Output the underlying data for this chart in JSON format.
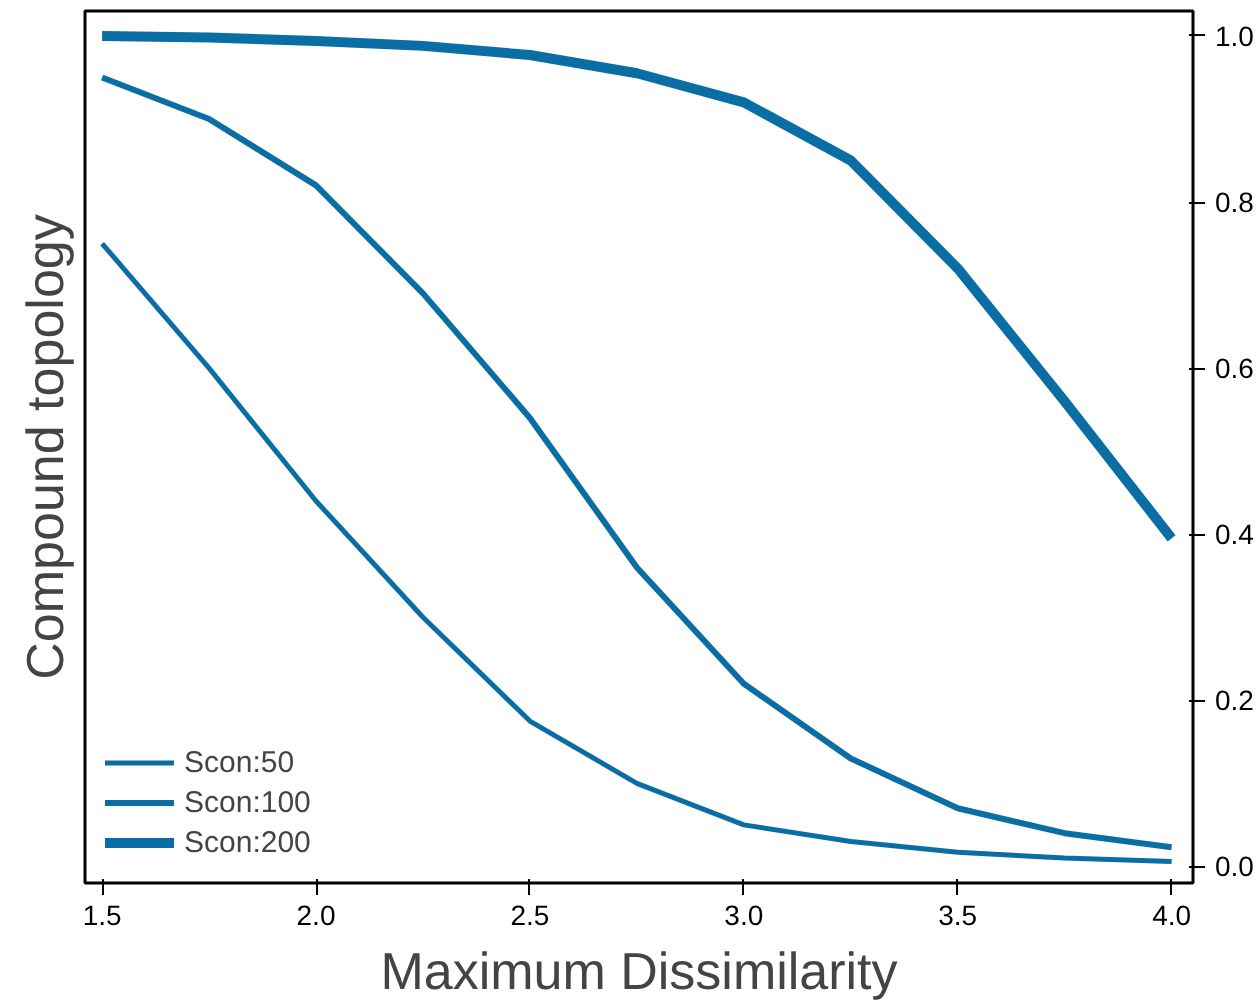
{
  "chart_data": {
    "type": "line",
    "xlabel": "Maximum Dissimilarity",
    "ylabel": "Compound topology",
    "x": [
      1.5,
      1.75,
      2.0,
      2.25,
      2.5,
      2.75,
      3.0,
      3.25,
      3.5,
      3.75,
      4.0
    ],
    "series": [
      {
        "name": "Scon:50",
        "color": "#0a6ea4",
        "values": [
          0.75,
          0.6,
          0.44,
          0.3,
          0.175,
          0.1,
          0.05,
          0.03,
          0.017,
          0.01,
          0.006
        ]
      },
      {
        "name": "Scon:100",
        "color": "#0a6ea4",
        "values": [
          0.95,
          0.9,
          0.82,
          0.69,
          0.54,
          0.36,
          0.22,
          0.13,
          0.07,
          0.04,
          0.023
        ]
      },
      {
        "name": "Scon:200",
        "color": "#0a6ea4",
        "values": [
          1.0,
          0.998,
          0.994,
          0.988,
          0.977,
          0.955,
          0.92,
          0.85,
          0.72,
          0.56,
          0.395
        ]
      }
    ],
    "xlim": [
      1.46,
      4.05
    ],
    "ylim": [
      -0.02,
      1.03
    ],
    "xticks": [
      {
        "value": 1.5,
        "label": "1.5"
      },
      {
        "value": 2.0,
        "label": "2.0"
      },
      {
        "value": 2.5,
        "label": "2.5"
      },
      {
        "value": 3.0,
        "label": "3.0"
      },
      {
        "value": 3.5,
        "label": "3.5"
      },
      {
        "value": 4.0,
        "label": "4.0"
      }
    ],
    "yticks": [
      {
        "value": 0,
        "label": "0.0"
      },
      0.2,
      0.4,
      0.6,
      0.8,
      {
        "value": 1,
        "label": "1.0"
      }
    ],
    "grid": false,
    "legend": "bottom left",
    "marker": "none",
    "line_style": "solid"
  }
}
